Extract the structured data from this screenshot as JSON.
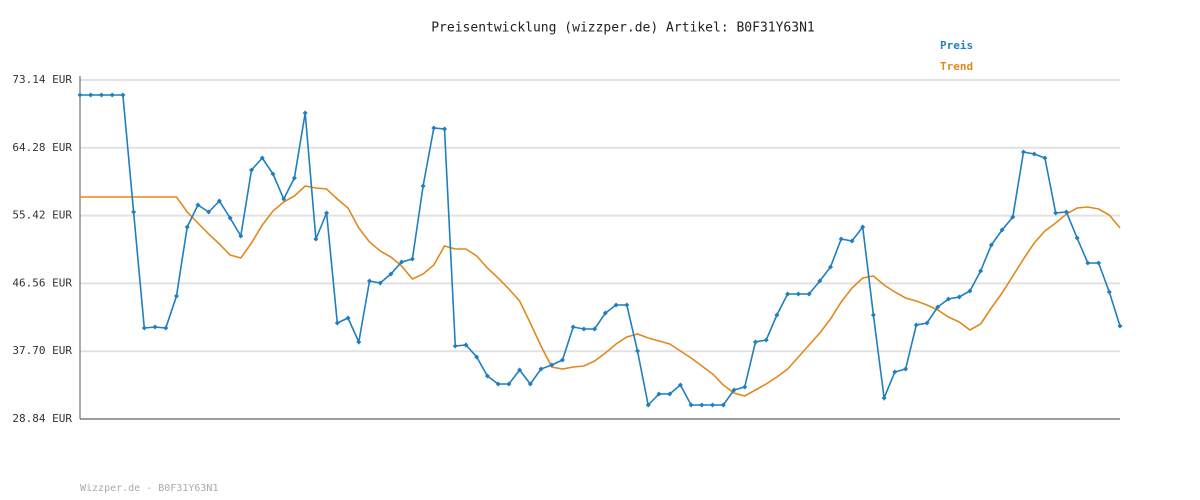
{
  "chart_data": {
    "type": "line",
    "title": "Preisentwicklung (wizzper.de) Artikel: B0F31Y63N1",
    "footer": "Wizzper.de - B0F31Y63N1",
    "ylim": [
      28.84,
      73.14
    ],
    "yticks": [
      {
        "value": 28.84,
        "label": "28.84 EUR"
      },
      {
        "value": 37.7,
        "label": "37.70 EUR"
      },
      {
        "value": 46.56,
        "label": "46.56 EUR"
      },
      {
        "value": 55.42,
        "label": "55.42 EUR"
      },
      {
        "value": 64.28,
        "label": "64.28 EUR"
      },
      {
        "value": 73.14,
        "label": "73.14 EUR"
      }
    ],
    "grid": true,
    "legend": "top-right",
    "series": [
      {
        "name": "Preis",
        "color": "#1f7fbf",
        "markers": true,
        "values": [
          71.18,
          71.18,
          71.18,
          71.18,
          71.18,
          55.89,
          40.73,
          40.86,
          40.73,
          44.91,
          53.93,
          56.81,
          55.89,
          57.33,
          55.11,
          52.75,
          61.38,
          62.95,
          60.85,
          57.59,
          60.33,
          68.83,
          52.36,
          55.76,
          41.38,
          42.04,
          38.9,
          46.87,
          46.61,
          47.79,
          49.36,
          49.75,
          59.29,
          66.87,
          66.74,
          38.38,
          38.51,
          36.94,
          34.46,
          33.41,
          33.41,
          35.24,
          33.41,
          35.37,
          35.9,
          36.55,
          40.86,
          40.6,
          40.6,
          42.69,
          43.74,
          43.74,
          37.73,
          30.67,
          32.11,
          32.11,
          33.28,
          30.67,
          30.67,
          30.67,
          30.67,
          32.63,
          33.02,
          38.9,
          39.16,
          42.43,
          45.17,
          45.17,
          45.17,
          46.87,
          48.7,
          52.36,
          52.1,
          53.93,
          42.43,
          31.58,
          34.98,
          35.37,
          41.12,
          41.38,
          43.48,
          44.52,
          44.78,
          45.57,
          48.18,
          51.58,
          53.54,
          55.24,
          63.73,
          63.47,
          62.95,
          55.76,
          55.89,
          52.49,
          49.23,
          49.23,
          45.44,
          40.99
        ]
      },
      {
        "name": "Trend",
        "color": "#e08a1e",
        "markers": false,
        "values": [
          57.85,
          57.85,
          57.85,
          57.85,
          57.85,
          57.85,
          57.85,
          57.85,
          57.85,
          57.85,
          55.89,
          54.45,
          53.02,
          51.71,
          50.27,
          49.88,
          51.84,
          54.19,
          56.02,
          57.2,
          57.98,
          59.29,
          59.03,
          58.9,
          57.59,
          56.41,
          53.8,
          51.97,
          50.79,
          50.01,
          48.83,
          47.13,
          47.79,
          48.96,
          51.45,
          51.06,
          51.06,
          50.14,
          48.57,
          47.27,
          45.83,
          44.26,
          41.38,
          38.38,
          35.63,
          35.37,
          35.63,
          35.76,
          36.42,
          37.46,
          38.64,
          39.56,
          39.95,
          39.43,
          39.03,
          38.64,
          37.73,
          36.81,
          35.76,
          34.72,
          33.28,
          32.24,
          31.85,
          32.63,
          33.41,
          34.33,
          35.37,
          36.94,
          38.51,
          40.08,
          41.91,
          44.13,
          45.96,
          47.27,
          47.53,
          46.35,
          45.43,
          44.65,
          44.26,
          43.74,
          43.08,
          42.17,
          41.52,
          40.47,
          41.25,
          43.35,
          45.3,
          47.53,
          49.75,
          51.84,
          53.41,
          54.45,
          55.63,
          56.41,
          56.55,
          56.28,
          55.5,
          53.8
        ]
      }
    ]
  }
}
